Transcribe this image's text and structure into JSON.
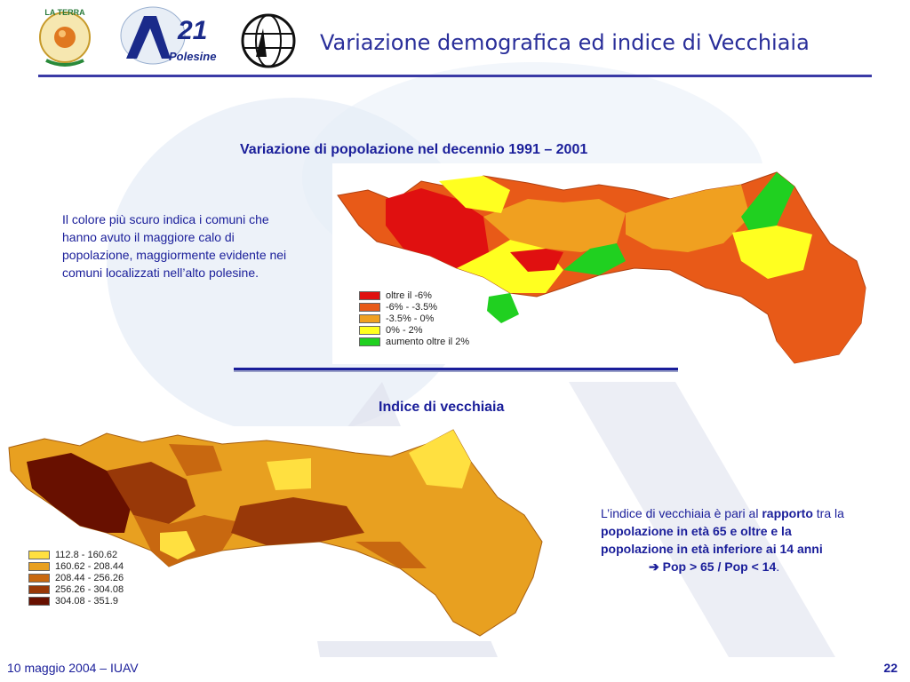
{
  "header": {
    "title": "Variazione demografica ed indice di Vecchiaia",
    "logos": [
      {
        "name": "la-terra-logo",
        "text": "LA TERRA"
      },
      {
        "name": "a21-polesine-logo",
        "text_big": "A21",
        "text_small": "Polesine"
      },
      {
        "name": "globe-logo"
      }
    ]
  },
  "section1": {
    "heading": "Variazione di popolazione nel decennio 1991 – 2001",
    "note": "Il colore più scuro indica i comuni che hanno avuto il maggiore calo di popolazione, maggiormente evidente nei comuni localizzati nell’alto polesine.",
    "legend": [
      {
        "label": "oltre il -6%",
        "color": "#e01010"
      },
      {
        "label": "-6% - -3.5%",
        "color": "#e85a18"
      },
      {
        "label": "-3.5% - 0%",
        "color": "#f0a020"
      },
      {
        "label": "0% - 2%",
        "color": "#ffff20"
      },
      {
        "label": "aumento oltre il 2%",
        "color": "#20d020"
      }
    ]
  },
  "section2": {
    "heading": "Indice di vecchiaia",
    "note_part1": "L’indice di vecchiaia è pari al ",
    "note_bold1": "rapporto",
    "note_part2": " tra la ",
    "note_bold2": "popolazione in età 65 e oltre e la popolazione in età inferiore ai 14 anni",
    "formula_arrow": "➔",
    "formula": "Pop > 65 / Pop < 14",
    "formula_end": ".",
    "legend": [
      {
        "label": "112.8 - 160.62",
        "color": "#ffe040"
      },
      {
        "label": "160.62 - 208.44",
        "color": "#e8a020"
      },
      {
        "label": "208.44 - 256.26",
        "color": "#c86810"
      },
      {
        "label": "256.26 - 304.08",
        "color": "#983808"
      },
      {
        "label": "304.08 - 351.9",
        "color": "#681000"
      }
    ]
  },
  "footer": {
    "date": "10 maggio 2004  – IUAV",
    "page": "22"
  }
}
